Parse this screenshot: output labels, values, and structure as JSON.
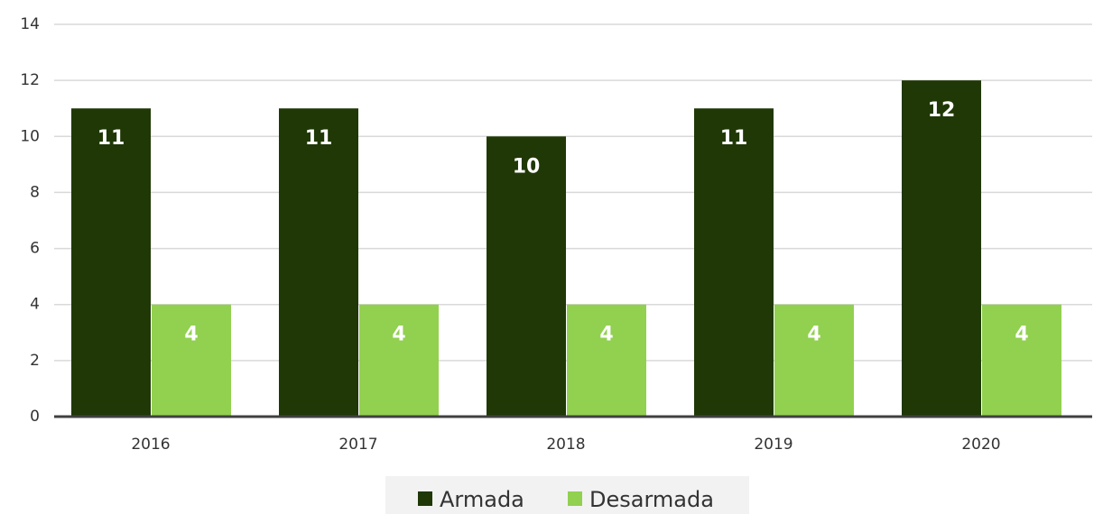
{
  "chart_data": {
    "type": "bar",
    "categories": [
      "2016",
      "2017",
      "2018",
      "2019",
      "2020"
    ],
    "series": [
      {
        "name": "Armada",
        "color": "#1f3806",
        "values": [
          11,
          11,
          10,
          11,
          12
        ]
      },
      {
        "name": "Desarmada",
        "color": "#92d050",
        "values": [
          4,
          4,
          4,
          4,
          4
        ]
      }
    ],
    "ylim": [
      0,
      14
    ],
    "yticks": [
      0,
      2,
      4,
      6,
      8,
      10,
      12,
      14
    ],
    "grid": true,
    "legend": "bottom"
  }
}
